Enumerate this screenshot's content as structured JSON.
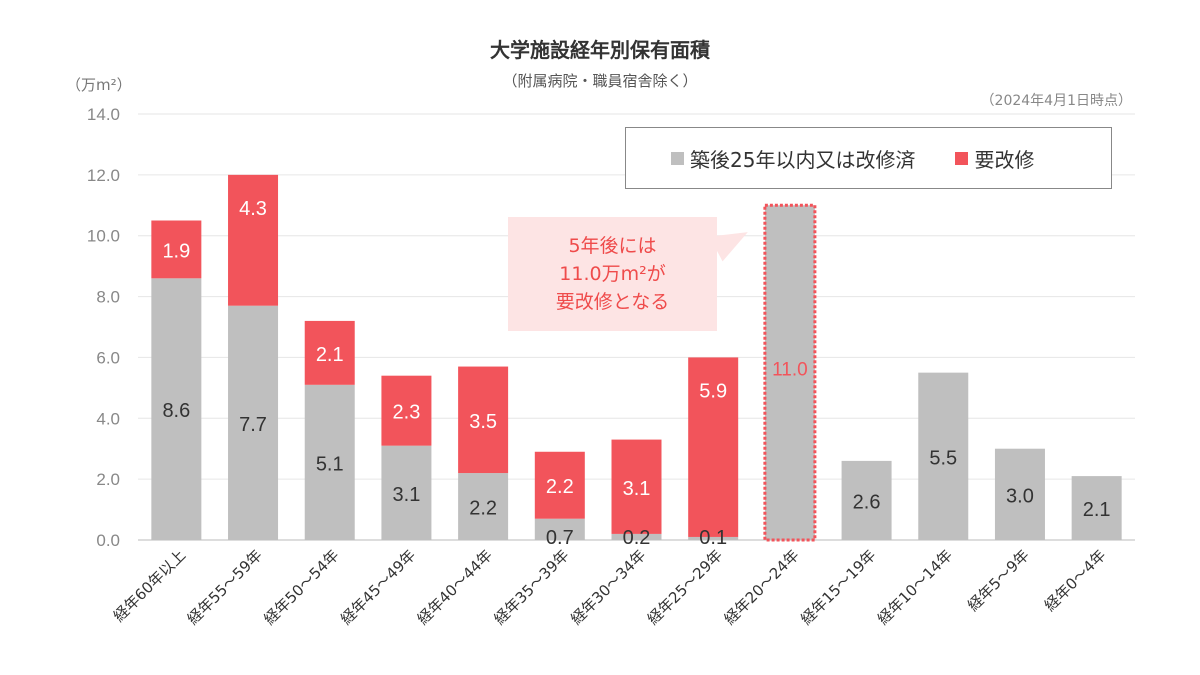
{
  "header": {
    "title": "大学施設経年別保有面積",
    "subtitle": "（附属病院・職員宿舎除く）",
    "unit": "（万m²）",
    "as_of": "（2024年4月1日時点）"
  },
  "legend": {
    "gray_label": "築後25年以内又は改修済",
    "red_label": "要改修"
  },
  "callout": {
    "line1": "5年後には",
    "line2": "11.0万m²が",
    "line3": "要改修となる"
  },
  "colors": {
    "gray": "#bfbfbf",
    "red": "#f2545b",
    "grid": "#e6e6e6",
    "axis": "#bbbbbb",
    "highlight_border": "#f2545b"
  },
  "chart_data": {
    "type": "bar",
    "stacked": true,
    "title": "大学施設経年別保有面積",
    "ylabel": "（万m²）",
    "ylim": [
      0,
      14
    ],
    "yticks": [
      "0.0",
      "2.0",
      "4.0",
      "6.0",
      "8.0",
      "10.0",
      "12.0",
      "14.0"
    ],
    "categories": [
      "経年60年以上",
      "経年55～59年",
      "経年50～54年",
      "経年45～49年",
      "経年40～44年",
      "経年35～39年",
      "経年30～34年",
      "経年25～29年",
      "経年20～24年",
      "経年15～19年",
      "経年10～14年",
      "経年5～9年",
      "経年0～4年"
    ],
    "series": [
      {
        "name": "築後25年以内又は改修済",
        "values": [
          8.6,
          7.7,
          5.1,
          3.1,
          2.2,
          0.7,
          0.2,
          0.1,
          11.0,
          2.6,
          5.5,
          3.0,
          2.1
        ],
        "labels": [
          "8.6",
          "7.7",
          "5.1",
          "3.1",
          "2.2",
          "0.7",
          "0.2",
          "0.1",
          "11.0",
          "2.6",
          "5.5",
          "3.0",
          "2.1"
        ]
      },
      {
        "name": "要改修",
        "values": [
          1.9,
          4.3,
          2.1,
          2.3,
          3.5,
          2.2,
          3.1,
          5.9,
          0,
          0,
          0,
          0,
          0
        ],
        "labels": [
          "1.9",
          "4.3",
          "2.1",
          "2.3",
          "3.5",
          "2.2",
          "3.1",
          "5.9",
          "",
          "",
          "",
          "",
          ""
        ]
      }
    ],
    "highlight_category": "経年20～24年"
  }
}
